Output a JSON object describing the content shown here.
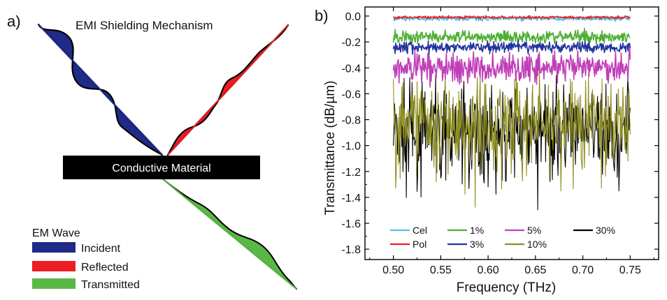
{
  "panel_a": {
    "label": "a)",
    "title": "EMI Shielding Mechanism",
    "material_label": "Conductive Material",
    "legend_title": "EM Wave",
    "legend": [
      {
        "label": "Incident",
        "color": "#1f2b87"
      },
      {
        "label": "Reflected",
        "color": "#ee1c24"
      },
      {
        "label": "Transmitted",
        "color": "#5ab946"
      }
    ]
  },
  "panel_b": {
    "label": "b)"
  },
  "chart_data": {
    "type": "line",
    "xlabel": "Frequency (THz)",
    "ylabel": "Transmittance (dB/µm)",
    "xlim": [
      0.47,
      0.78
    ],
    "ylim": [
      -1.88,
      0.07
    ],
    "xticks": [
      "0.50",
      "0.55",
      "0.60",
      "0.65",
      "0.70",
      "0.75"
    ],
    "yticks": [
      "0.0",
      "-0.2",
      "-0.4",
      "-0.6",
      "-0.8",
      "-1.0",
      "-1.2",
      "-1.4",
      "-1.6",
      "-1.8"
    ],
    "legend_position": "bottom",
    "series": [
      {
        "name": "Cel",
        "color": "#4fc3e6",
        "mean": -0.02,
        "noise": 0.012
      },
      {
        "name": "Pol",
        "color": "#e3242b",
        "mean": -0.01,
        "noise": 0.008
      },
      {
        "name": "1%",
        "color": "#4caf32",
        "mean": -0.16,
        "noise": 0.035
      },
      {
        "name": "3%",
        "color": "#2233a0",
        "mean": -0.24,
        "noise": 0.03
      },
      {
        "name": "5%",
        "color": "#c03fb8",
        "mean": -0.4,
        "noise": 0.08
      },
      {
        "name": "10%",
        "color": "#8f8f22",
        "mean": -0.82,
        "noise": 0.22
      },
      {
        "name": "30%",
        "color": "#000000",
        "mean": -0.9,
        "noise": 0.25
      }
    ]
  }
}
